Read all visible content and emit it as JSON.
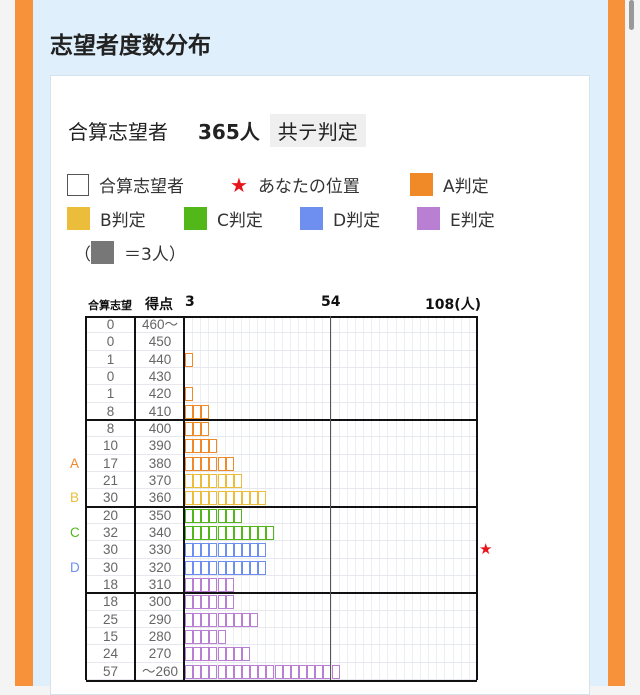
{
  "title": "志望者度数分布",
  "summary": {
    "label": "合算志望者",
    "count": "365人",
    "tag": "共テ判定"
  },
  "legend": {
    "applicants": "合算志望者",
    "your_position": "あなたの位置",
    "a": "A判定",
    "b": "B判定",
    "c": "C判定",
    "d": "D判定",
    "e": "E判定",
    "unit_open": "（",
    "unit_close": "＝3人）"
  },
  "colors": {
    "A": "#f08a28",
    "B": "#ebbd3a",
    "C": "#52b81a",
    "D": "#6e8ff0",
    "E": "#b97fd3",
    "star": "#e8141c",
    "unit": "#777777"
  },
  "chart_data": {
    "type": "bar",
    "orientation": "horizontal",
    "headers": {
      "count": "合算志望",
      "score": "得点"
    },
    "x_ticks": [
      "3",
      "54",
      "108(人)"
    ],
    "xlim": [
      0,
      108
    ],
    "unit_per_box": 3,
    "your_position_score": "330",
    "rows": [
      {
        "score": "460〜",
        "count": 0,
        "judge": ""
      },
      {
        "score": "450",
        "count": 0,
        "judge": ""
      },
      {
        "score": "440",
        "count": 1,
        "judge": "A"
      },
      {
        "score": "430",
        "count": 0,
        "judge": "A"
      },
      {
        "score": "420",
        "count": 1,
        "judge": "A"
      },
      {
        "score": "410",
        "count": 8,
        "judge": "A"
      },
      {
        "score": "400",
        "count": 8,
        "judge": "A"
      },
      {
        "score": "390",
        "count": 10,
        "judge": "A"
      },
      {
        "score": "380",
        "count": 17,
        "judge": "A",
        "label": "A"
      },
      {
        "score": "370",
        "count": 21,
        "judge": "B"
      },
      {
        "score": "360",
        "count": 30,
        "judge": "B",
        "label": "B"
      },
      {
        "score": "350",
        "count": 20,
        "judge": "C"
      },
      {
        "score": "340",
        "count": 32,
        "judge": "C",
        "label": "C"
      },
      {
        "score": "330",
        "count": 30,
        "judge": "D"
      },
      {
        "score": "320",
        "count": 30,
        "judge": "D",
        "label": "D"
      },
      {
        "score": "310",
        "count": 18,
        "judge": "E"
      },
      {
        "score": "300",
        "count": 18,
        "judge": "E"
      },
      {
        "score": "290",
        "count": 25,
        "judge": "E"
      },
      {
        "score": "280",
        "count": 15,
        "judge": "E"
      },
      {
        "score": "270",
        "count": 24,
        "judge": "E"
      },
      {
        "score": "〜260",
        "count": 57,
        "judge": "E"
      }
    ]
  }
}
